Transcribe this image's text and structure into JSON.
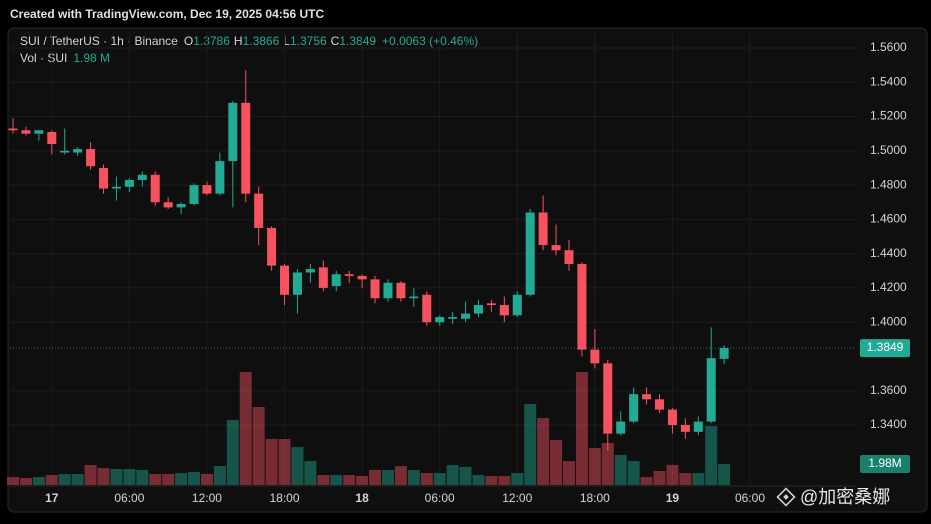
{
  "chart_data": {
    "type": "candlestick",
    "title": "Created with TradingView.com, Dec 19, 2025 04:56 UTC",
    "symbol": "SUI / TetherUS · 1h · Binance",
    "ohlc_labels": [
      "O",
      "H",
      "L",
      "C"
    ],
    "change": "+0.0063 (+0.46%)",
    "volume_title": "Vol · SUI",
    "volume_header": "1.98 M",
    "volume_badge": "1.98M",
    "watermark": "@加密桑娜",
    "up_color": "#22ab94",
    "down_color": "#f7525f",
    "grid": true,
    "categories": [
      null,
      null,
      null,
      "17",
      null,
      null,
      null,
      null,
      null,
      "06:00",
      null,
      null,
      null,
      null,
      null,
      "12:00",
      null,
      null,
      null,
      null,
      null,
      "18:00",
      null,
      null,
      null,
      null,
      null,
      "18",
      null,
      null,
      null,
      null,
      null,
      "06:00",
      null,
      null,
      null,
      null,
      null,
      "12:00",
      null,
      null,
      null,
      null,
      null,
      "18:00",
      null,
      null,
      null,
      null,
      null,
      "19",
      null,
      null,
      null,
      null,
      null,
      "06:00"
    ],
    "open": [
      1.513,
      1.512,
      1.51,
      1.511,
      1.499,
      1.499,
      1.501,
      1.49,
      1.478,
      1.479,
      1.483,
      1.486,
      1.47,
      1.467,
      1.469,
      1.48,
      1.475,
      1.494,
      1.528,
      1.475,
      1.455,
      1.433,
      1.416,
      1.429,
      1.432,
      1.421,
      1.428,
      1.427,
      1.425,
      1.414,
      1.423,
      1.414,
      1.416,
      1.4,
      1.402,
      1.402,
      1.405,
      1.411,
      1.41,
      1.404,
      1.416,
      1.464,
      1.445,
      1.442,
      1.434,
      1.384,
      1.376,
      1.335,
      1.342,
      1.358,
      1.355,
      1.349,
      1.34,
      1.336,
      1.342,
      1.3786,
      null,
      null
    ],
    "high": [
      1.519,
      1.514,
      1.512,
      1.512,
      1.513,
      1.502,
      1.505,
      1.492,
      1.485,
      1.484,
      1.488,
      1.488,
      1.473,
      1.47,
      1.481,
      1.482,
      1.499,
      1.529,
      1.547,
      1.479,
      1.456,
      1.434,
      1.431,
      1.434,
      1.436,
      1.43,
      1.43,
      1.428,
      1.427,
      1.425,
      1.424,
      1.42,
      1.418,
      1.404,
      1.406,
      1.412,
      1.413,
      1.413,
      1.415,
      1.418,
      1.466,
      1.474,
      1.457,
      1.448,
      1.435,
      1.396,
      1.378,
      1.348,
      1.362,
      1.362,
      1.358,
      1.35,
      1.344,
      1.345,
      1.397,
      1.3866,
      null,
      null
    ],
    "low": [
      1.51,
      1.509,
      1.506,
      1.498,
      1.498,
      1.497,
      1.489,
      1.475,
      1.471,
      1.476,
      1.479,
      1.468,
      1.466,
      1.463,
      1.468,
      1.474,
      1.474,
      1.467,
      1.47,
      1.445,
      1.43,
      1.41,
      1.405,
      1.423,
      1.418,
      1.418,
      1.423,
      1.42,
      1.411,
      1.412,
      1.412,
      1.409,
      1.398,
      1.398,
      1.399,
      1.4,
      1.403,
      1.406,
      1.4,
      1.403,
      1.415,
      1.442,
      1.439,
      1.43,
      1.38,
      1.373,
      1.325,
      1.334,
      1.341,
      1.352,
      1.347,
      1.335,
      1.332,
      1.334,
      1.341,
      1.3756,
      null,
      null
    ],
    "close": [
      1.512,
      1.51,
      1.512,
      1.504,
      1.5,
      1.501,
      1.491,
      1.478,
      1.479,
      1.483,
      1.486,
      1.47,
      1.467,
      1.469,
      1.48,
      1.475,
      1.494,
      1.528,
      1.475,
      1.455,
      1.433,
      1.416,
      1.429,
      1.431,
      1.42,
      1.428,
      1.427,
      1.425,
      1.414,
      1.423,
      1.414,
      1.415,
      1.4,
      1.403,
      1.403,
      1.405,
      1.41,
      1.41,
      1.404,
      1.416,
      1.464,
      1.445,
      1.442,
      1.434,
      1.384,
      1.376,
      1.335,
      1.342,
      1.358,
      1.355,
      1.349,
      1.34,
      1.336,
      1.342,
      1.379,
      1.3849,
      null,
      null
    ],
    "volume": [
      0.75,
      0.66,
      0.75,
      0.94,
      1.04,
      1.04,
      1.89,
      1.6,
      1.51,
      1.51,
      1.42,
      1.04,
      1.04,
      1.13,
      1.23,
      1.04,
      1.79,
      6.13,
      10.66,
      7.36,
      4.34,
      4.34,
      3.58,
      2.26,
      0.94,
      0.94,
      0.94,
      0.85,
      1.42,
      1.42,
      1.79,
      1.42,
      1.13,
      1.13,
      1.89,
      1.7,
      0.94,
      0.85,
      0.85,
      1.13,
      7.64,
      6.32,
      4.25,
      2.26,
      10.66,
      3.49,
      3.96,
      2.83,
      2.26,
      0.75,
      1.32,
      1.89,
      1.13,
      1.13,
      5.57,
      1.98,
      null,
      null
    ],
    "ylim": [
      1.305,
      1.5705
    ],
    "yticks": [
      {
        "value": 1.34,
        "label": "1.3400"
      },
      {
        "value": 1.36,
        "label": "1.3600"
      },
      {
        "value": 1.4,
        "label": "1.4000"
      },
      {
        "value": 1.42,
        "label": "1.4200"
      },
      {
        "value": 1.44,
        "label": "1.4400"
      },
      {
        "value": 1.46,
        "label": "1.4600"
      },
      {
        "value": 1.48,
        "label": "1.4800"
      },
      {
        "value": 1.5,
        "label": "1.5000"
      },
      {
        "value": 1.52,
        "label": "1.5200"
      },
      {
        "value": 1.54,
        "label": "1.5400"
      },
      {
        "value": 1.56,
        "label": "1.5600"
      }
    ]
  }
}
